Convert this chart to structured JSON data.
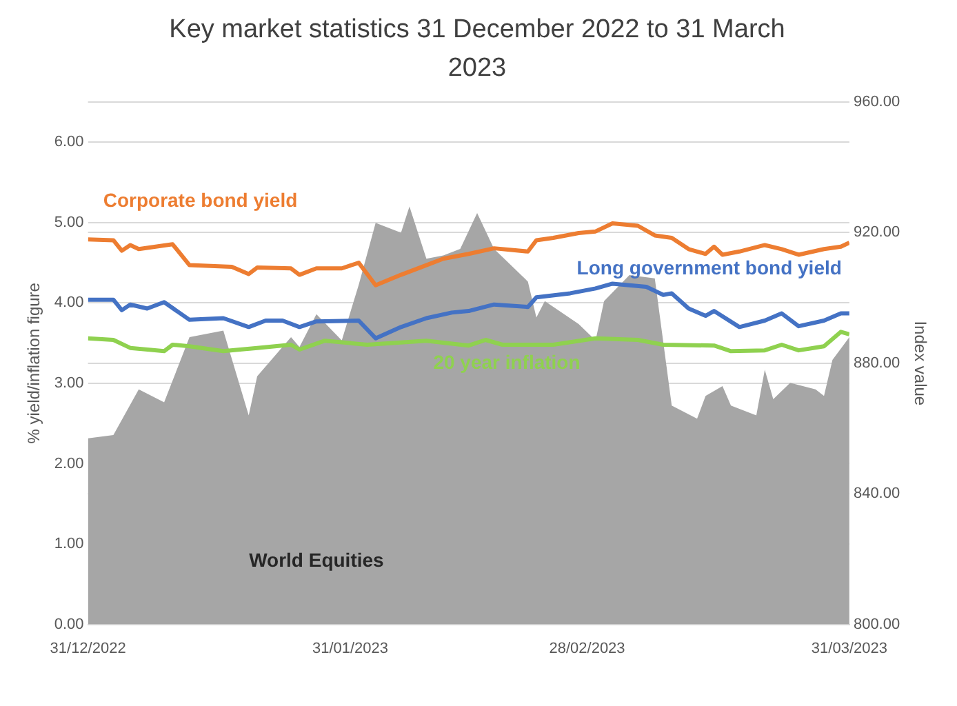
{
  "chart_data": {
    "type": "line",
    "title": "Key market statistics 31 December 2022 to 31 March 2023",
    "ylabel": "% yield/inflation figure",
    "y2label": "Index value",
    "series": [
      {
        "name": "World Equities",
        "type": "area",
        "axis": "y2",
        "color": "#a6a6a6",
        "x": [
          "2022-12-31",
          "2023-01-03",
          "2023-01-06",
          "2023-01-09",
          "2023-01-12",
          "2023-01-16",
          "2023-01-19",
          "2023-01-20",
          "2023-01-24",
          "2023-01-25",
          "2023-01-27",
          "2023-01-30",
          "2023-02-01",
          "2023-02-03",
          "2023-02-06",
          "2023-02-07",
          "2023-02-09",
          "2023-02-11",
          "2023-02-13",
          "2023-02-15",
          "2023-02-17",
          "2023-02-21",
          "2023-02-22",
          "2023-02-23",
          "2023-02-27",
          "2023-03-01",
          "2023-03-02",
          "2023-03-05",
          "2023-03-08",
          "2023-03-10",
          "2023-03-13",
          "2023-03-14",
          "2023-03-16",
          "2023-03-17",
          "2023-03-20",
          "2023-03-21",
          "2023-03-22",
          "2023-03-24",
          "2023-03-27",
          "2023-03-28",
          "2023-03-29",
          "2023-03-31"
        ],
        "values": [
          857,
          858,
          872,
          868,
          888,
          890,
          864,
          876,
          888,
          885,
          895,
          887,
          904,
          923,
          920,
          928,
          912,
          913,
          915,
          926,
          915,
          905,
          894,
          899,
          892,
          887,
          899,
          907,
          906,
          867,
          863,
          870,
          873,
          867,
          864,
          878,
          869,
          874,
          872,
          870,
          881,
          888
        ]
      },
      {
        "name": "Corporate bond yield",
        "color": "#ed7d31",
        "x": [
          "2022-12-31",
          "2023-01-03",
          "2023-01-04",
          "2023-01-05",
          "2023-01-06",
          "2023-01-10",
          "2023-01-12",
          "2023-01-17",
          "2023-01-19",
          "2023-01-20",
          "2023-01-24",
          "2023-01-25",
          "2023-01-27",
          "2023-01-30",
          "2023-02-01",
          "2023-02-03",
          "2023-02-06",
          "2023-02-09",
          "2023-02-11",
          "2023-02-14",
          "2023-02-17",
          "2023-02-21",
          "2023-02-22",
          "2023-02-24",
          "2023-02-27",
          "2023-03-01",
          "2023-03-03",
          "2023-03-06",
          "2023-03-08",
          "2023-03-10",
          "2023-03-12",
          "2023-03-14",
          "2023-03-15",
          "2023-03-16",
          "2023-03-18",
          "2023-03-21",
          "2023-03-23",
          "2023-03-25",
          "2023-03-28",
          "2023-03-30",
          "2023-03-31"
        ],
        "values": [
          4.79,
          4.78,
          4.65,
          4.72,
          4.67,
          4.73,
          4.47,
          4.45,
          4.36,
          4.44,
          4.43,
          4.35,
          4.43,
          4.43,
          4.5,
          4.22,
          4.35,
          4.47,
          4.55,
          4.61,
          4.68,
          4.64,
          4.78,
          4.81,
          4.87,
          4.89,
          4.99,
          4.96,
          4.84,
          4.81,
          4.67,
          4.61,
          4.7,
          4.6,
          4.64,
          4.72,
          4.67,
          4.6,
          4.67,
          4.7,
          4.75
        ]
      },
      {
        "name": "Long government bond yield",
        "color": "#4472c4",
        "x": [
          "2022-12-31",
          "2023-01-03",
          "2023-01-04",
          "2023-01-05",
          "2023-01-07",
          "2023-01-09",
          "2023-01-12",
          "2023-01-16",
          "2023-01-19",
          "2023-01-21",
          "2023-01-23",
          "2023-01-25",
          "2023-01-27",
          "2023-02-01",
          "2023-02-03",
          "2023-02-06",
          "2023-02-09",
          "2023-02-12",
          "2023-02-14",
          "2023-02-17",
          "2023-02-21",
          "2023-02-22",
          "2023-02-26",
          "2023-03-01",
          "2023-03-03",
          "2023-03-07",
          "2023-03-09",
          "2023-03-10",
          "2023-03-12",
          "2023-03-14",
          "2023-03-15",
          "2023-03-18",
          "2023-03-21",
          "2023-03-23",
          "2023-03-25",
          "2023-03-28",
          "2023-03-30",
          "2023-03-31"
        ],
        "values": [
          4.04,
          4.04,
          3.91,
          3.98,
          3.93,
          4.01,
          3.79,
          3.81,
          3.7,
          3.78,
          3.78,
          3.7,
          3.77,
          3.78,
          3.56,
          3.7,
          3.81,
          3.88,
          3.9,
          3.98,
          3.95,
          4.07,
          4.12,
          4.18,
          4.24,
          4.2,
          4.1,
          4.12,
          3.93,
          3.84,
          3.9,
          3.7,
          3.78,
          3.87,
          3.71,
          3.78,
          3.87,
          3.87
        ]
      },
      {
        "name": "20 year inflation",
        "color": "#8fd14f",
        "x": [
          "2022-12-31",
          "2023-01-03",
          "2023-01-05",
          "2023-01-09",
          "2023-01-10",
          "2023-01-12",
          "2023-01-16",
          "2023-01-20",
          "2023-01-24",
          "2023-01-25",
          "2023-01-28",
          "2023-02-02",
          "2023-02-09",
          "2023-02-14",
          "2023-02-16",
          "2023-02-18",
          "2023-02-24",
          "2023-03-01",
          "2023-03-06",
          "2023-03-09",
          "2023-03-15",
          "2023-03-17",
          "2023-03-21",
          "2023-03-23",
          "2023-03-25",
          "2023-03-28",
          "2023-03-30",
          "2023-03-31"
        ],
        "values": [
          3.56,
          3.54,
          3.44,
          3.4,
          3.48,
          3.46,
          3.4,
          3.44,
          3.48,
          3.42,
          3.53,
          3.48,
          3.53,
          3.47,
          3.54,
          3.48,
          3.48,
          3.56,
          3.54,
          3.48,
          3.47,
          3.4,
          3.41,
          3.48,
          3.41,
          3.46,
          3.64,
          3.61
        ]
      }
    ],
    "xlim": [
      "2022-12-31",
      "2023-03-31"
    ],
    "xticks": [
      {
        "value": "2022-12-31",
        "label": "31/12/2022"
      },
      {
        "value": "2023-01-31",
        "label": "31/01/2023"
      },
      {
        "value": "2023-02-28",
        "label": "28/02/2023"
      },
      {
        "value": "2023-03-31",
        "label": "31/03/2023"
      }
    ],
    "ylim": [
      0,
      6.5
    ],
    "yticks": [
      {
        "value": 0,
        "label": "0.00"
      },
      {
        "value": 1,
        "label": "1.00"
      },
      {
        "value": 2,
        "label": "2.00"
      },
      {
        "value": 3,
        "label": "3.00"
      },
      {
        "value": 4,
        "label": "4.00"
      },
      {
        "value": 5,
        "label": "5.00"
      },
      {
        "value": 6,
        "label": "6.00"
      }
    ],
    "y2lim": [
      800,
      960
    ],
    "y2ticks": [
      {
        "value": 800,
        "label": "800.00"
      },
      {
        "value": 840,
        "label": "840.00"
      },
      {
        "value": 880,
        "label": "880.00"
      },
      {
        "value": 920,
        "label": "920.00"
      },
      {
        "value": 960,
        "label": "960.00"
      }
    ],
    "grid": "y",
    "legend": false,
    "marker": "none",
    "line_style": "solid"
  }
}
